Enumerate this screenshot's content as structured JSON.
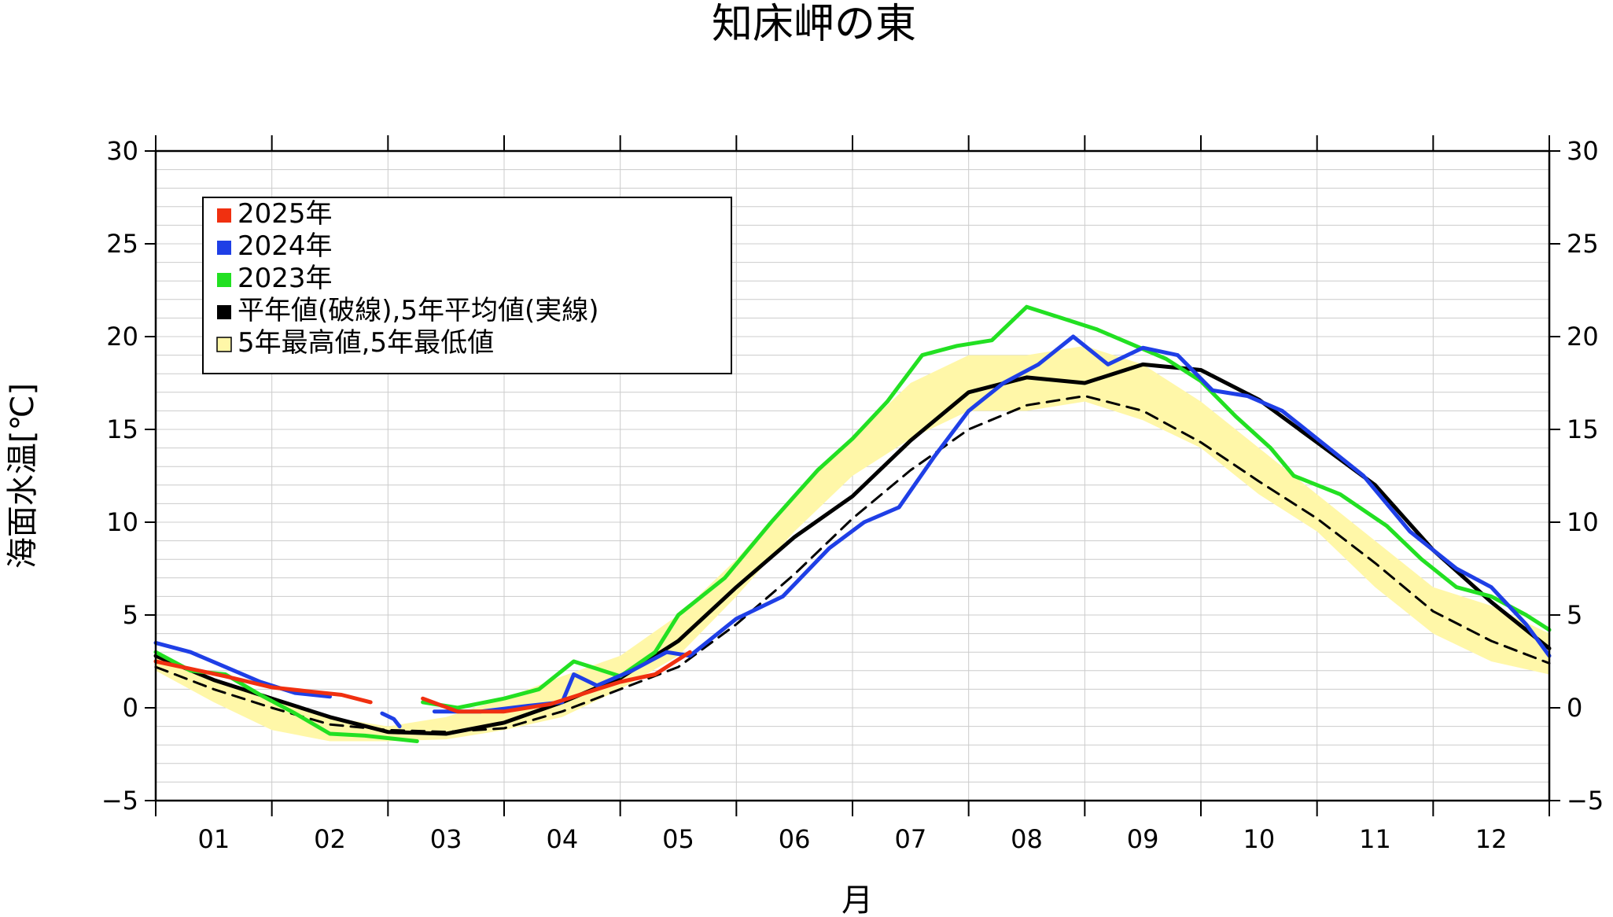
{
  "chart_data": {
    "type": "line",
    "title": "知床岬の東",
    "xlabel": "月",
    "ylabel": "海面水温[℃]",
    "ylim": [
      -5,
      30
    ],
    "yticks": [
      -5,
      0,
      5,
      10,
      15,
      20,
      25,
      30
    ],
    "xlim": [
      0,
      12
    ],
    "xtick_labels": [
      "01",
      "02",
      "03",
      "04",
      "05",
      "06",
      "07",
      "08",
      "09",
      "10",
      "11",
      "12"
    ],
    "grid": true,
    "legend_position": "top-left",
    "legend": [
      {
        "label": "2025年",
        "color": "#f03010"
      },
      {
        "label": "2024年",
        "color": "#1f3fe6"
      },
      {
        "label": "2023年",
        "color": "#22e022"
      },
      {
        "label": "平年値(破線),5年平均値(実線)",
        "color": "#000000"
      },
      {
        "label": "5年最高値,5年最低値",
        "color": "#fff7a8"
      }
    ],
    "band": {
      "name": "5年最高値,5年最低値",
      "x": [
        0,
        0.5,
        1,
        1.5,
        2,
        2.5,
        3,
        3.5,
        4,
        4.5,
        5,
        5.5,
        6,
        6.5,
        7,
        7.5,
        8,
        8.5,
        9,
        9.5,
        10,
        10.5,
        11,
        11.5,
        12
      ],
      "upper": [
        3.0,
        1.5,
        0.5,
        -0.5,
        -1.0,
        -0.5,
        0.5,
        1.7,
        2.8,
        5.0,
        8.0,
        11.5,
        14.5,
        17.5,
        19.0,
        19.0,
        19.5,
        18.5,
        16.5,
        14.0,
        11.5,
        9.0,
        6.5,
        5.5,
        4.0
      ],
      "lower": [
        2.0,
        0.3,
        -1.2,
        -1.8,
        -1.8,
        -1.7,
        -1.2,
        -0.5,
        1.0,
        2.8,
        6.0,
        9.5,
        12.5,
        14.5,
        16.0,
        16.0,
        16.5,
        15.5,
        14.0,
        11.5,
        9.5,
        6.5,
        4.0,
        2.5,
        1.8
      ]
    },
    "series": [
      {
        "name": "2025年",
        "color": "#f03010",
        "segments": [
          {
            "x": [
              0,
              0.3,
              0.6,
              1.0,
              1.3,
              1.6,
              1.85
            ],
            "y": [
              2.5,
              2.1,
              1.7,
              1.1,
              0.9,
              0.7,
              0.3
            ]
          },
          {
            "x": [
              2.3,
              2.6,
              3.0,
              3.4,
              3.7,
              4.0,
              4.3,
              4.6
            ],
            "y": [
              0.5,
              -0.2,
              -0.2,
              0.2,
              0.8,
              1.4,
              1.8,
              3.0
            ]
          }
        ]
      },
      {
        "name": "2024年",
        "color": "#1f3fe6",
        "segments": [
          {
            "x": [
              0,
              0.3,
              0.6,
              0.9,
              1.2,
              1.5
            ],
            "y": [
              3.5,
              3.0,
              2.2,
              1.4,
              0.8,
              0.6
            ]
          },
          {
            "x": [
              1.95,
              2.05,
              2.1
            ],
            "y": [
              -0.3,
              -0.6,
              -1.0
            ]
          },
          {
            "x": [
              2.4,
              2.8,
              3.2,
              3.5,
              3.6,
              3.8,
              4.1,
              4.4,
              4.6,
              5.0,
              5.4,
              5.8,
              6.1,
              6.4,
              6.7,
              7.0,
              7.3,
              7.6,
              7.9,
              8.2,
              8.5,
              8.8,
              9.1,
              9.4,
              9.7,
              10.0,
              10.4,
              10.8,
              11.2,
              11.5,
              11.8,
              12.0
            ],
            "y": [
              -0.2,
              -0.2,
              0.1,
              0.3,
              1.8,
              1.2,
              2.0,
              3.0,
              2.8,
              4.8,
              6.0,
              8.6,
              10.0,
              10.8,
              13.5,
              16.0,
              17.5,
              18.5,
              20.0,
              18.5,
              19.4,
              19.0,
              17.1,
              16.8,
              16.0,
              14.5,
              12.5,
              9.5,
              7.5,
              6.5,
              4.5,
              2.8
            ]
          }
        ]
      },
      {
        "name": "2023年",
        "color": "#22e022",
        "segments": [
          {
            "x": [
              0,
              0.3,
              0.6,
              0.9,
              1.2,
              1.5,
              1.8,
              2.1,
              2.25
            ],
            "y": [
              3.0,
              2.0,
              1.8,
              0.7,
              -0.3,
              -1.4,
              -1.5,
              -1.7,
              -1.8
            ]
          },
          {
            "x": [
              2.3,
              2.6,
              3.0,
              3.3,
              3.6,
              4.0,
              4.3,
              4.5,
              4.9,
              5.3,
              5.7,
              6.0,
              6.3,
              6.6,
              6.9,
              7.2,
              7.5,
              7.8,
              8.1,
              8.4,
              8.7,
              9.0,
              9.3,
              9.6,
              9.8,
              10.2,
              10.6,
              10.9,
              11.2,
              11.5,
              11.8,
              12.0
            ],
            "y": [
              0.3,
              0.0,
              0.5,
              1.0,
              2.5,
              1.7,
              3.0,
              5.0,
              7.0,
              10.0,
              12.8,
              14.5,
              16.5,
              19.0,
              19.5,
              19.8,
              21.6,
              21.0,
              20.4,
              19.6,
              18.8,
              17.6,
              15.7,
              14.0,
              12.5,
              11.5,
              9.8,
              8.0,
              6.5,
              6.0,
              5.0,
              4.2
            ]
          }
        ]
      },
      {
        "name": "平年値",
        "color": "#000000",
        "dashed": true,
        "x": [
          0,
          0.5,
          1,
          1.5,
          2,
          2.5,
          3,
          3.5,
          4,
          4.5,
          5,
          5.5,
          6,
          6.5,
          7,
          7.5,
          8,
          8.5,
          9,
          9.5,
          10,
          10.5,
          11,
          11.5,
          12
        ],
        "y": [
          2.2,
          1.0,
          0.0,
          -0.9,
          -1.2,
          -1.3,
          -1.1,
          -0.2,
          1.0,
          2.2,
          4.5,
          7.2,
          10.2,
          12.8,
          15.0,
          16.3,
          16.8,
          16.0,
          14.3,
          12.2,
          10.2,
          7.8,
          5.2,
          3.6,
          2.4
        ]
      },
      {
        "name": "5年平均値",
        "color": "#000000",
        "dashed": false,
        "x": [
          0,
          0.5,
          1,
          1.5,
          2,
          2.5,
          3,
          3.5,
          4,
          4.5,
          5,
          5.5,
          6,
          6.5,
          7,
          7.5,
          8,
          8.5,
          9,
          9.5,
          10,
          10.5,
          11,
          11.5,
          12
        ],
        "y": [
          2.8,
          1.5,
          0.5,
          -0.5,
          -1.3,
          -1.4,
          -0.8,
          0.3,
          1.6,
          3.6,
          6.5,
          9.2,
          11.4,
          14.4,
          17.0,
          17.8,
          17.5,
          18.5,
          18.2,
          16.6,
          14.3,
          12.0,
          8.5,
          5.7,
          3.2
        ]
      }
    ]
  }
}
